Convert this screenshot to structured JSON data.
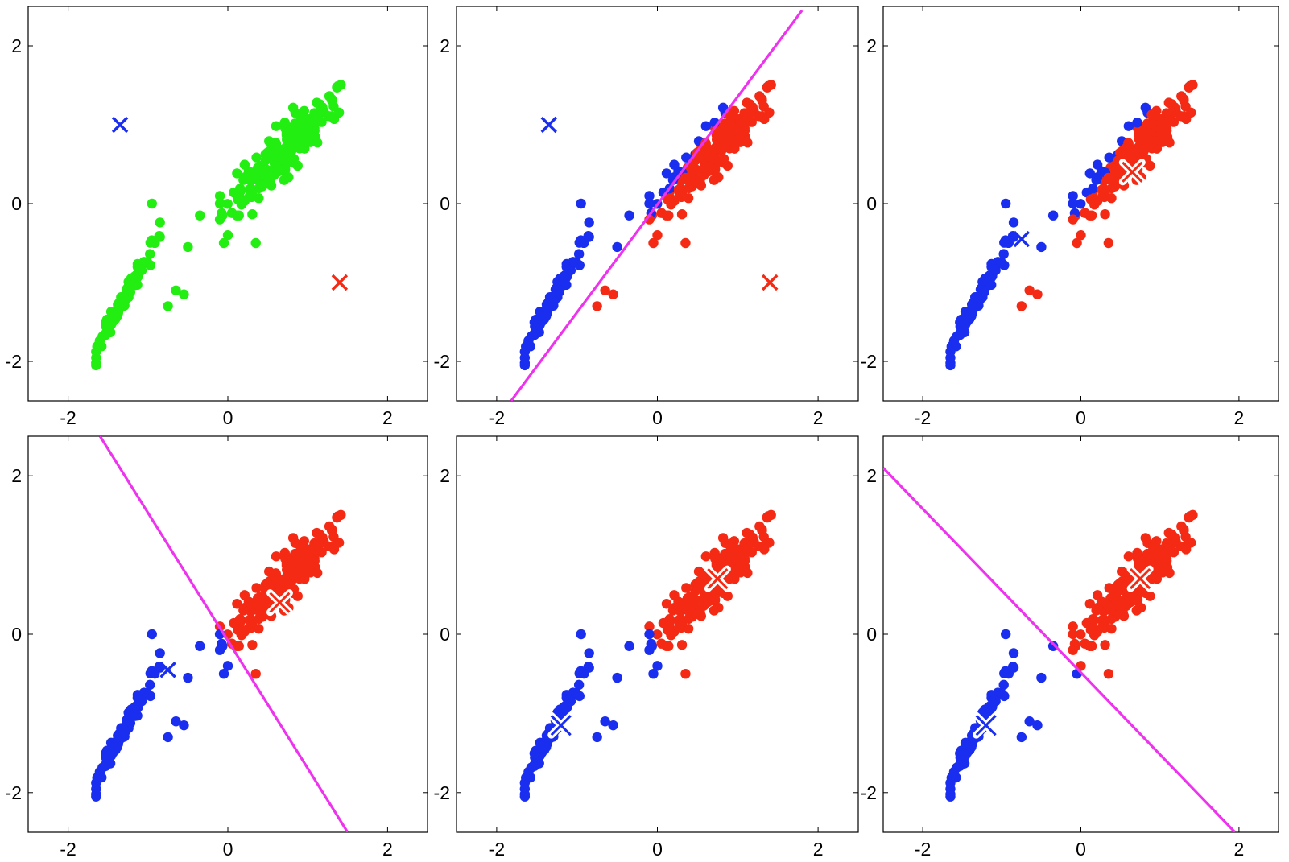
{
  "colors": {
    "unassigned": "#22ee11",
    "cluster_blue": "#1a2ef0",
    "cluster_red": "#f52a14",
    "boundary": "#ee33ee",
    "axis": "#000000",
    "background": "#ffffff"
  },
  "chart_data": [
    {
      "type": "scatter",
      "panel": 1,
      "xlim": [
        -2.5,
        2.5
      ],
      "ylim": [
        -2.5,
        2.5
      ],
      "xticks": [
        "-2",
        "0",
        "2"
      ],
      "yticks": [
        "-2",
        "0",
        "2"
      ],
      "grid": false,
      "points": "all points unassigned (green)",
      "centroids": [
        {
          "x": -1.35,
          "y": 1.0,
          "color": "blue",
          "style": "plain"
        },
        {
          "x": 1.4,
          "y": -1.0,
          "color": "red",
          "style": "plain"
        }
      ],
      "boundary": null
    },
    {
      "type": "scatter",
      "panel": 2,
      "xlim": [
        -2.5,
        2.5
      ],
      "ylim": [
        -2.5,
        2.5
      ],
      "xticks": [
        "-2",
        "0",
        "2"
      ],
      "yticks": [
        "-2",
        "0",
        "2"
      ],
      "grid": false,
      "points": "split by boundary line",
      "centroids": [
        {
          "x": -1.35,
          "y": 1.0,
          "color": "blue",
          "style": "plain"
        },
        {
          "x": 1.4,
          "y": -1.0,
          "color": "red",
          "style": "plain"
        }
      ],
      "boundary": {
        "x1": -1.82,
        "y1": -2.5,
        "x2": 1.8,
        "y2": 2.45
      }
    },
    {
      "type": "scatter",
      "panel": 3,
      "xlim": [
        -2.5,
        2.5
      ],
      "ylim": [
        -2.5,
        2.5
      ],
      "xticks": [
        "-2",
        "0",
        "2"
      ],
      "yticks": [
        "-2",
        "0",
        "2"
      ],
      "grid": false,
      "points": "colored by previous assignment",
      "centroids": [
        {
          "x": -0.75,
          "y": -0.45,
          "color": "blue",
          "style": "plain"
        },
        {
          "x": 0.65,
          "y": 0.4,
          "color": "red",
          "style": "white"
        }
      ],
      "boundary": null
    },
    {
      "type": "scatter",
      "panel": 4,
      "xlim": [
        -2.5,
        2.5
      ],
      "ylim": [
        -2.5,
        2.5
      ],
      "xticks": [
        "-2",
        "0",
        "2"
      ],
      "yticks": [
        "-2",
        "0",
        "2"
      ],
      "grid": false,
      "points": "split by boundary line",
      "centroids": [
        {
          "x": -0.75,
          "y": -0.45,
          "color": "blue",
          "style": "plain"
        },
        {
          "x": 0.65,
          "y": 0.4,
          "color": "red",
          "style": "white"
        }
      ],
      "boundary": {
        "x1": -1.6,
        "y1": 2.5,
        "x2": 1.5,
        "y2": -2.5
      }
    },
    {
      "type": "scatter",
      "panel": 5,
      "xlim": [
        -2.5,
        2.5
      ],
      "ylim": [
        -2.5,
        2.5
      ],
      "xticks": [
        "-2",
        "0",
        "2"
      ],
      "yticks": [
        "-2",
        "0",
        "2"
      ],
      "grid": false,
      "points": "colored by previous assignment",
      "centroids": [
        {
          "x": -1.2,
          "y": -1.15,
          "color": "blue",
          "style": "white"
        },
        {
          "x": 0.75,
          "y": 0.7,
          "color": "red",
          "style": "white"
        }
      ],
      "boundary": null
    },
    {
      "type": "scatter",
      "panel": 6,
      "xlim": [
        -2.5,
        2.5
      ],
      "ylim": [
        -2.5,
        2.5
      ],
      "xticks": [
        "-2",
        "0",
        "2"
      ],
      "yticks": [
        "-2",
        "0",
        "2"
      ],
      "grid": false,
      "points": "split by boundary line",
      "centroids": [
        {
          "x": -1.2,
          "y": -1.15,
          "color": "blue",
          "style": "white"
        },
        {
          "x": 0.75,
          "y": 0.7,
          "color": "red",
          "style": "white"
        }
      ],
      "boundary": {
        "x1": -2.5,
        "y1": 2.1,
        "x2": 1.95,
        "y2": -2.5
      }
    }
  ]
}
